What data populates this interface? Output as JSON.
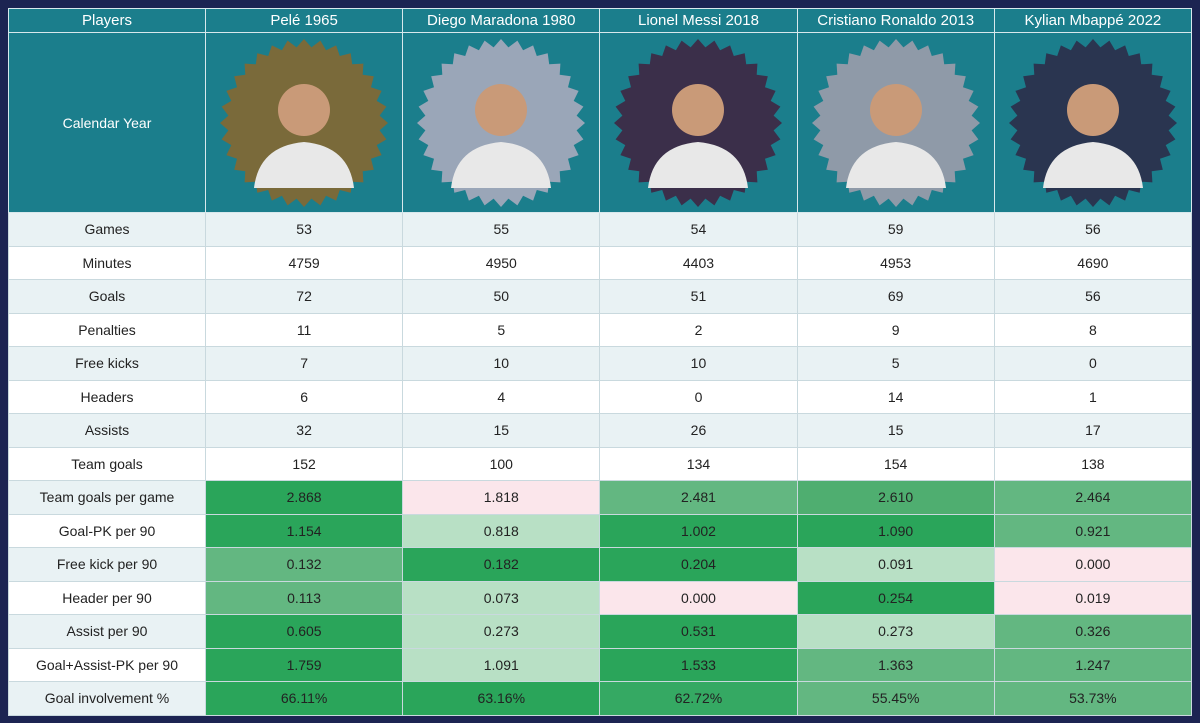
{
  "header": [
    "Players",
    "Pelé 1965",
    "Diego Maradona 1980",
    "Lionel Messi 2018",
    "Cristiano Ronaldo 2013",
    "Kylian Mbappé 2022"
  ],
  "photo_row_label": "Calendar Year",
  "rows": [
    {
      "label": "Games",
      "values": [
        "53",
        "55",
        "54",
        "59",
        "56"
      ]
    },
    {
      "label": "Minutes",
      "values": [
        "4759",
        "4950",
        "4403",
        "4953",
        "4690"
      ]
    },
    {
      "label": "Goals",
      "values": [
        "72",
        "50",
        "51",
        "69",
        "56"
      ]
    },
    {
      "label": "Penalties",
      "values": [
        "11",
        "5",
        "2",
        "9",
        "8"
      ]
    },
    {
      "label": "Free kicks",
      "values": [
        "7",
        "10",
        "10",
        "5",
        "0"
      ]
    },
    {
      "label": "Headers",
      "values": [
        "6",
        "4",
        "0",
        "14",
        "1"
      ]
    },
    {
      "label": "Assists",
      "values": [
        "32",
        "15",
        "26",
        "15",
        "17"
      ]
    },
    {
      "label": "Team goals",
      "values": [
        "152",
        "100",
        "134",
        "154",
        "138"
      ]
    },
    {
      "label": "Team goals per game",
      "values": [
        "2.868",
        "1.818",
        "2.481",
        "2.610",
        "2.464"
      ],
      "colors": [
        "#2aa55a",
        "#fbe6eb",
        "#63b781",
        "#4fae70",
        "#63b781"
      ]
    },
    {
      "label": "Goal-PK per 90",
      "values": [
        "1.154",
        "0.818",
        "1.002",
        "1.090",
        "0.921"
      ],
      "colors": [
        "#2aa55a",
        "#b8e0c5",
        "#2aa55a",
        "#2aa55a",
        "#63b781"
      ]
    },
    {
      "label": "Free kick per 90",
      "values": [
        "0.132",
        "0.182",
        "0.204",
        "0.091",
        "0.000"
      ],
      "colors": [
        "#63b781",
        "#2aa55a",
        "#2aa55a",
        "#b8e0c5",
        "#fbe6eb"
      ]
    },
    {
      "label": "Header per 90",
      "values": [
        "0.113",
        "0.073",
        "0.000",
        "0.254",
        "0.019"
      ],
      "colors": [
        "#63b781",
        "#b8e0c5",
        "#fbe6eb",
        "#2aa55a",
        "#fbe6eb"
      ]
    },
    {
      "label": "Assist per 90",
      "values": [
        "0.605",
        "0.273",
        "0.531",
        "0.273",
        "0.326"
      ],
      "colors": [
        "#2aa55a",
        "#b8e0c5",
        "#2aa55a",
        "#b8e0c5",
        "#63b781"
      ]
    },
    {
      "label": "Goal+Assist-PK per 90",
      "values": [
        "1.759",
        "1.091",
        "1.533",
        "1.363",
        "1.247"
      ],
      "colors": [
        "#2aa55a",
        "#b8e0c5",
        "#2aa55a",
        "#63b781",
        "#63b781"
      ]
    },
    {
      "label": "Goal involvement %",
      "values": [
        "66.11%",
        "63.16%",
        "62.72%",
        "55.45%",
        "53.73%"
      ],
      "colors": [
        "#2aa55a",
        "#2aa55a",
        "#35a963",
        "#63b781",
        "#63b781"
      ]
    }
  ]
}
